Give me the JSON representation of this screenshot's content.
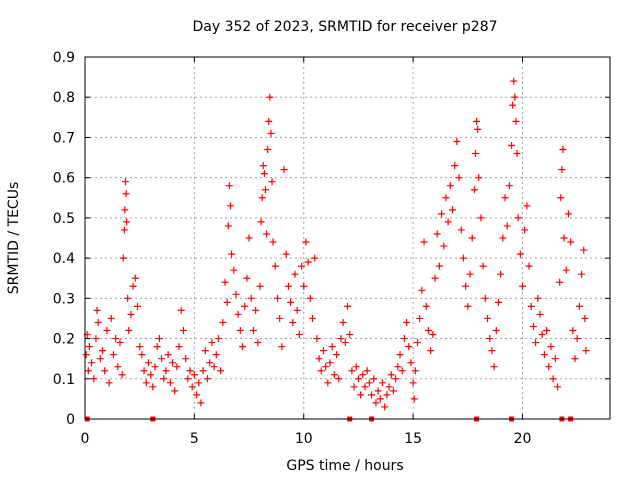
{
  "chart_data": {
    "type": "scatter",
    "title": "Day 352 of 2023, SRMTID for receiver p287",
    "xlabel": "GPS time / hours",
    "ylabel": "SRMTID / TECUs",
    "xlim": [
      0,
      24
    ],
    "ylim": [
      0,
      0.9
    ],
    "xticks": [
      0,
      5,
      10,
      15,
      20
    ],
    "xtick_labels": [
      "0",
      "5",
      "10",
      "15",
      "20"
    ],
    "yticks": [
      0,
      0.1,
      0.2,
      0.3,
      0.4,
      0.5,
      0.6,
      0.7,
      0.8,
      0.9
    ],
    "ytick_labels": [
      "0",
      "0.1",
      "0.2",
      "0.3",
      "0.4",
      "0.5",
      "0.6",
      "0.7",
      "0.8",
      "0.9"
    ],
    "grid": true,
    "marker": "+",
    "color": "#ff0000",
    "series": [
      {
        "name": "SRMTID",
        "points": [
          [
            0.05,
            0.16
          ],
          [
            0.1,
            0.21
          ],
          [
            0.15,
            0.12
          ],
          [
            0.2,
            0.18
          ],
          [
            0.3,
            0.14
          ],
          [
            0.4,
            0.1
          ],
          [
            0.5,
            0.2
          ],
          [
            0.55,
            0.27
          ],
          [
            0.6,
            0.24
          ],
          [
            0.7,
            0.15
          ],
          [
            0.8,
            0.17
          ],
          [
            0.9,
            0.12
          ],
          [
            1.0,
            0.22
          ],
          [
            1.1,
            0.09
          ],
          [
            1.2,
            0.25
          ],
          [
            1.3,
            0.16
          ],
          [
            1.4,
            0.2
          ],
          [
            1.5,
            0.13
          ],
          [
            1.6,
            0.19
          ],
          [
            1.7,
            0.11
          ],
          [
            1.75,
            0.4
          ],
          [
            1.8,
            0.47
          ],
          [
            1.82,
            0.52
          ],
          [
            1.85,
            0.59
          ],
          [
            1.88,
            0.56
          ],
          [
            1.9,
            0.49
          ],
          [
            1.95,
            0.3
          ],
          [
            2.0,
            0.22
          ],
          [
            2.1,
            0.26
          ],
          [
            2.2,
            0.33
          ],
          [
            2.3,
            0.35
          ],
          [
            2.4,
            0.28
          ],
          [
            2.5,
            0.18
          ],
          [
            2.6,
            0.16
          ],
          [
            2.7,
            0.12
          ],
          [
            2.8,
            0.09
          ],
          [
            2.9,
            0.14
          ],
          [
            3.0,
            0.11
          ],
          [
            3.1,
            0.08
          ],
          [
            3.2,
            0.13
          ],
          [
            3.3,
            0.18
          ],
          [
            3.4,
            0.2
          ],
          [
            3.5,
            0.15
          ],
          [
            3.6,
            0.1
          ],
          [
            3.7,
            0.12
          ],
          [
            3.8,
            0.16
          ],
          [
            3.9,
            0.09
          ],
          [
            4.0,
            0.14
          ],
          [
            4.1,
            0.07
          ],
          [
            4.2,
            0.13
          ],
          [
            4.3,
            0.18
          ],
          [
            4.4,
            0.27
          ],
          [
            4.5,
            0.22
          ],
          [
            4.6,
            0.15
          ],
          [
            4.7,
            0.1
          ],
          [
            4.8,
            0.12
          ],
          [
            4.9,
            0.08
          ],
          [
            5.0,
            0.11
          ],
          [
            5.1,
            0.06
          ],
          [
            5.2,
            0.09
          ],
          [
            5.3,
            0.04
          ],
          [
            5.4,
            0.12
          ],
          [
            5.5,
            0.17
          ],
          [
            5.6,
            0.1
          ],
          [
            5.7,
            0.14
          ],
          [
            5.8,
            0.19
          ],
          [
            5.9,
            0.13
          ],
          [
            6.0,
            0.16
          ],
          [
            6.1,
            0.2
          ],
          [
            6.2,
            0.12
          ],
          [
            6.3,
            0.24
          ],
          [
            6.4,
            0.34
          ],
          [
            6.5,
            0.29
          ],
          [
            6.55,
            0.48
          ],
          [
            6.6,
            0.58
          ],
          [
            6.65,
            0.53
          ],
          [
            6.7,
            0.41
          ],
          [
            6.8,
            0.37
          ],
          [
            6.9,
            0.31
          ],
          [
            7.0,
            0.26
          ],
          [
            7.1,
            0.22
          ],
          [
            7.2,
            0.18
          ],
          [
            7.3,
            0.28
          ],
          [
            7.4,
            0.35
          ],
          [
            7.5,
            0.45
          ],
          [
            7.6,
            0.3
          ],
          [
            7.7,
            0.22
          ],
          [
            7.8,
            0.27
          ],
          [
            7.9,
            0.19
          ],
          [
            8.0,
            0.33
          ],
          [
            8.05,
            0.49
          ],
          [
            8.1,
            0.55
          ],
          [
            8.15,
            0.63
          ],
          [
            8.2,
            0.61
          ],
          [
            8.25,
            0.57
          ],
          [
            8.3,
            0.46
          ],
          [
            8.35,
            0.67
          ],
          [
            8.4,
            0.74
          ],
          [
            8.45,
            0.8
          ],
          [
            8.5,
            0.71
          ],
          [
            8.55,
            0.59
          ],
          [
            8.6,
            0.44
          ],
          [
            8.7,
            0.38
          ],
          [
            8.8,
            0.3
          ],
          [
            8.9,
            0.25
          ],
          [
            9.0,
            0.18
          ],
          [
            9.1,
            0.62
          ],
          [
            9.2,
            0.41
          ],
          [
            9.3,
            0.33
          ],
          [
            9.4,
            0.29
          ],
          [
            9.5,
            0.24
          ],
          [
            9.6,
            0.36
          ],
          [
            9.7,
            0.27
          ],
          [
            9.8,
            0.21
          ],
          [
            9.9,
            0.38
          ],
          [
            10.0,
            0.33
          ],
          [
            10.1,
            0.44
          ],
          [
            10.2,
            0.39
          ],
          [
            10.3,
            0.3
          ],
          [
            10.4,
            0.25
          ],
          [
            10.5,
            0.4
          ],
          [
            10.6,
            0.2
          ],
          [
            10.7,
            0.15
          ],
          [
            10.8,
            0.12
          ],
          [
            10.9,
            0.17
          ],
          [
            11.0,
            0.13
          ],
          [
            11.1,
            0.09
          ],
          [
            11.2,
            0.14
          ],
          [
            11.3,
            0.18
          ],
          [
            11.4,
            0.11
          ],
          [
            11.5,
            0.16
          ],
          [
            11.6,
            0.1
          ],
          [
            11.7,
            0.2
          ],
          [
            11.8,
            0.24
          ],
          [
            11.9,
            0.19
          ],
          [
            12.0,
            0.28
          ],
          [
            12.1,
            0.21
          ],
          [
            12.2,
            0.12
          ],
          [
            12.3,
            0.08
          ],
          [
            12.4,
            0.13
          ],
          [
            12.5,
            0.1
          ],
          [
            12.6,
            0.06
          ],
          [
            12.7,
            0.11
          ],
          [
            12.8,
            0.08
          ],
          [
            12.9,
            0.12
          ],
          [
            13.0,
            0.09
          ],
          [
            13.1,
            0.06
          ],
          [
            13.2,
            0.1
          ],
          [
            13.3,
            0.04
          ],
          [
            13.4,
            0.07
          ],
          [
            13.5,
            0.05
          ],
          [
            13.6,
            0.09
          ],
          [
            13.7,
            0.03
          ],
          [
            13.8,
            0.06
          ],
          [
            13.9,
            0.08
          ],
          [
            14.0,
            0.11
          ],
          [
            14.1,
            0.07
          ],
          [
            14.2,
            0.1
          ],
          [
            14.3,
            0.13
          ],
          [
            14.4,
            0.16
          ],
          [
            14.5,
            0.12
          ],
          [
            14.6,
            0.2
          ],
          [
            14.7,
            0.24
          ],
          [
            14.8,
            0.18
          ],
          [
            14.9,
            0.14
          ],
          [
            15.0,
            0.09
          ],
          [
            15.05,
            0.05
          ],
          [
            15.1,
            0.12
          ],
          [
            15.2,
            0.19
          ],
          [
            15.3,
            0.25
          ],
          [
            15.4,
            0.32
          ],
          [
            15.5,
            0.44
          ],
          [
            15.6,
            0.28
          ],
          [
            15.7,
            0.22
          ],
          [
            15.8,
            0.17
          ],
          [
            15.9,
            0.21
          ],
          [
            16.0,
            0.35
          ],
          [
            16.1,
            0.46
          ],
          [
            16.2,
            0.38
          ],
          [
            16.3,
            0.51
          ],
          [
            16.4,
            0.43
          ],
          [
            16.5,
            0.55
          ],
          [
            16.6,
            0.49
          ],
          [
            16.7,
            0.58
          ],
          [
            16.8,
            0.52
          ],
          [
            16.9,
            0.63
          ],
          [
            17.0,
            0.69
          ],
          [
            17.1,
            0.6
          ],
          [
            17.2,
            0.47
          ],
          [
            17.3,
            0.4
          ],
          [
            17.4,
            0.33
          ],
          [
            17.5,
            0.28
          ],
          [
            17.6,
            0.36
          ],
          [
            17.7,
            0.45
          ],
          [
            17.8,
            0.57
          ],
          [
            17.85,
            0.66
          ],
          [
            17.9,
            0.74
          ],
          [
            17.95,
            0.72
          ],
          [
            18.0,
            0.6
          ],
          [
            18.1,
            0.5
          ],
          [
            18.2,
            0.38
          ],
          [
            18.3,
            0.3
          ],
          [
            18.4,
            0.25
          ],
          [
            18.5,
            0.2
          ],
          [
            18.6,
            0.17
          ],
          [
            18.7,
            0.13
          ],
          [
            18.8,
            0.22
          ],
          [
            18.9,
            0.29
          ],
          [
            19.0,
            0.36
          ],
          [
            19.1,
            0.45
          ],
          [
            19.2,
            0.55
          ],
          [
            19.3,
            0.48
          ],
          [
            19.4,
            0.58
          ],
          [
            19.5,
            0.68
          ],
          [
            19.55,
            0.78
          ],
          [
            19.6,
            0.84
          ],
          [
            19.65,
            0.8
          ],
          [
            19.7,
            0.74
          ],
          [
            19.75,
            0.66
          ],
          [
            19.8,
            0.5
          ],
          [
            19.9,
            0.41
          ],
          [
            20.0,
            0.33
          ],
          [
            20.1,
            0.47
          ],
          [
            20.2,
            0.53
          ],
          [
            20.3,
            0.38
          ],
          [
            20.4,
            0.28
          ],
          [
            20.5,
            0.23
          ],
          [
            20.6,
            0.19
          ],
          [
            20.7,
            0.3
          ],
          [
            20.8,
            0.26
          ],
          [
            20.9,
            0.21
          ],
          [
            21.0,
            0.16
          ],
          [
            21.1,
            0.22
          ],
          [
            21.2,
            0.13
          ],
          [
            21.3,
            0.18
          ],
          [
            21.4,
            0.1
          ],
          [
            21.5,
            0.15
          ],
          [
            21.6,
            0.08
          ],
          [
            21.7,
            0.34
          ],
          [
            21.75,
            0.55
          ],
          [
            21.8,
            0.62
          ],
          [
            21.85,
            0.67
          ],
          [
            21.9,
            0.45
          ],
          [
            22.0,
            0.37
          ],
          [
            22.1,
            0.51
          ],
          [
            22.2,
            0.44
          ],
          [
            22.3,
            0.22
          ],
          [
            22.4,
            0.15
          ],
          [
            22.5,
            0.2
          ],
          [
            22.6,
            0.28
          ],
          [
            22.7,
            0.36
          ],
          [
            22.8,
            0.42
          ],
          [
            22.85,
            0.25
          ],
          [
            22.9,
            0.17
          ]
        ]
      }
    ],
    "axis_markers": [
      0.1,
      3.1,
      12.1,
      13.1,
      17.9,
      19.5,
      21.8,
      22.2
    ]
  }
}
